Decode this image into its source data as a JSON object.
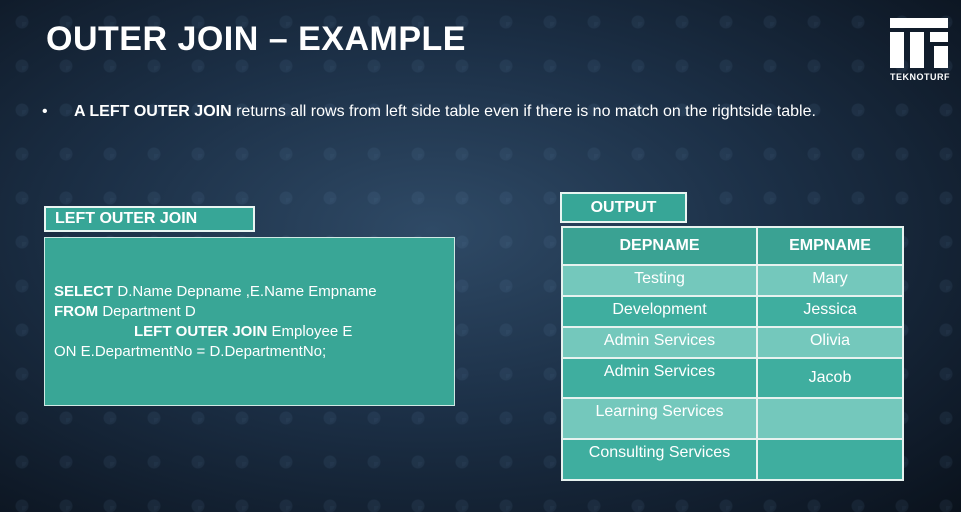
{
  "slide": {
    "title": "OUTER JOIN – EXAMPLE",
    "bullet_bold": "A LEFT OUTER JOIN",
    "bullet_rest": " returns all rows from left side table even if there is no match on the rightside table."
  },
  "logo": {
    "text": "TEKNOTURF",
    "icon": "teknoturf-logo"
  },
  "query_panel": {
    "label": "LEFT OUTER JOIN",
    "lines": [
      {
        "kw": "SELECT",
        "rest": " D.Name Depname ,E.Name Empname"
      },
      {
        "kw": "FROM",
        "rest": " Department  D"
      },
      {
        "kw": "LEFT OUTER JOIN",
        "rest": " Employee E"
      },
      {
        "kw": "",
        "rest": "ON E.DepartmentNo = D.DepartmentNo;"
      }
    ]
  },
  "output": {
    "label": "OUTPUT",
    "headers": [
      "DEPNAME",
      "EMPNAME"
    ],
    "rows": [
      [
        "Testing",
        "Mary"
      ],
      [
        "Development",
        "Jessica"
      ],
      [
        "Admin Services",
        "Olivia"
      ],
      [
        "Admin Services",
        "Jacob"
      ],
      [
        "Learning Services",
        ""
      ],
      [
        "Consulting Services",
        ""
      ]
    ]
  },
  "colors": {
    "accent": "#37a697",
    "row_light": "#74c8bc",
    "row_dark": "#3fae9f",
    "background": "#1c3047"
  }
}
